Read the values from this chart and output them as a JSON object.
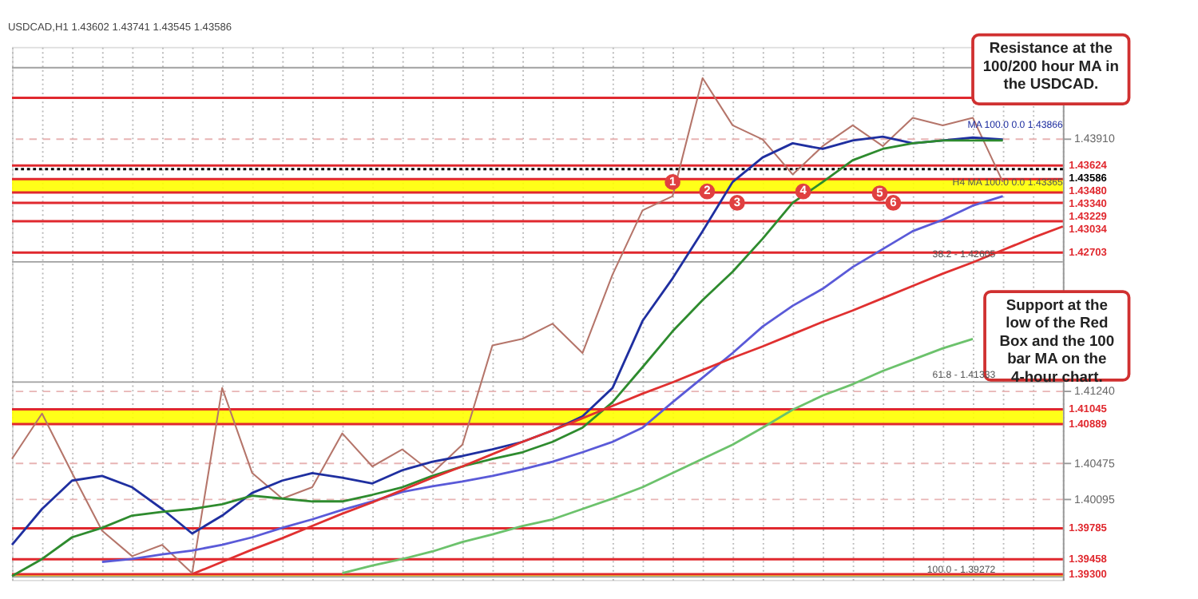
{
  "chart_data": {
    "type": "line",
    "title": "USDCAD,H1 1.43602 1.43741 1.43545 1.43586",
    "categories": [
      null,
      null,
      null,
      null,
      null,
      null,
      null,
      null,
      null,
      null,
      null,
      null,
      null,
      null,
      null,
      null,
      null,
      null,
      null,
      null,
      null,
      null,
      null,
      null,
      null,
      null,
      null,
      null,
      null,
      null,
      null,
      null,
      null,
      null,
      null,
      null
    ],
    "series": [
      {
        "color": "#b5756a",
        "values": [
          1.4052,
          1.41,
          1.4037,
          1.3976,
          1.3949,
          1.3961,
          1.3931,
          1.4127,
          1.4037,
          1.401,
          1.4022,
          1.4079,
          1.4044,
          1.4062,
          1.4037,
          1.4067,
          1.4172,
          1.4179,
          1.4195,
          1.4164,
          1.4247,
          1.4315,
          1.433,
          1.4455,
          1.4405,
          1.439,
          1.4353,
          1.4383,
          1.4405,
          1.4383,
          1.4413,
          1.4405,
          1.4413,
          1.4345,
          null,
          null
        ]
      },
      {
        "color": "#1f2fa0",
        "values": [
          1.3961,
          1.3999,
          1.4029,
          1.4034,
          1.4022,
          1.3999,
          1.3973,
          1.3992,
          1.4016,
          1.4029,
          1.4037,
          1.4032,
          1.4026,
          1.404,
          1.4049,
          1.4055,
          1.4062,
          1.407,
          1.4082,
          1.4097,
          1.4127,
          1.4198,
          1.4243,
          1.4293,
          1.4345,
          1.4371,
          1.4386,
          1.438,
          1.4389,
          1.4393,
          1.4386,
          1.4389,
          1.4392,
          1.439,
          null,
          null
        ]
      },
      {
        "color": "#2e8b2e",
        "values": [
          1.3928,
          1.3946,
          1.3969,
          1.3979,
          1.3992,
          1.3996,
          1.3999,
          1.4004,
          1.4013,
          1.401,
          1.4007,
          1.4007,
          1.4014,
          1.4022,
          1.4034,
          1.4044,
          1.4052,
          1.4059,
          1.407,
          1.4085,
          1.4112,
          1.4149,
          1.4187,
          1.422,
          1.425,
          1.4285,
          1.4323,
          1.4345,
          1.4368,
          1.438,
          1.4386,
          1.4389,
          1.4389,
          1.4389,
          null,
          null
        ]
      },
      {
        "color": "#5a5ad8",
        "values": [
          null,
          null,
          null,
          1.3943,
          1.3946,
          1.3951,
          1.3955,
          1.3961,
          1.3969,
          1.3979,
          1.3988,
          1.3998,
          1.4007,
          1.4017,
          1.4023,
          1.4028,
          1.4034,
          1.4041,
          1.4049,
          1.4059,
          1.407,
          1.4085,
          1.4112,
          1.4138,
          1.4164,
          1.4192,
          1.4214,
          1.4232,
          1.4255,
          1.4274,
          1.4293,
          1.4305,
          1.432,
          1.433,
          null,
          null
        ]
      },
      {
        "color": "#6cc26c",
        "values": [
          null,
          null,
          null,
          null,
          null,
          null,
          null,
          null,
          null,
          null,
          null,
          1.3931,
          1.3939,
          1.3946,
          1.3954,
          1.3964,
          1.3972,
          1.3981,
          1.3988,
          1.3999,
          1.401,
          1.4022,
          1.4037,
          1.4052,
          1.4067,
          1.4085,
          1.4104,
          1.4119,
          1.4131,
          1.4145,
          1.4157,
          1.4169,
          1.4179,
          null,
          null,
          null
        ]
      },
      {
        "color": "#e03030",
        "values": [
          null,
          null,
          null,
          null,
          null,
          null,
          1.393,
          1.3943,
          1.3956,
          1.3968,
          1.3981,
          1.3994,
          1.4006,
          1.4019,
          1.4032,
          1.4044,
          1.4057,
          1.407,
          1.4082,
          1.4095,
          1.4108,
          1.4121,
          1.4133,
          1.4146,
          1.4159,
          1.4171,
          1.4184,
          1.4197,
          1.4209,
          1.4222,
          1.4235,
          1.4248,
          1.426,
          1.4273,
          1.4286,
          1.4298
        ]
      }
    ],
    "ylim": [
      1.3924,
      1.4488
    ],
    "yticks": [
      1.40095,
      1.40475,
      {
        "value": 1.4124,
        "label": "1.41240"
      },
      {
        "value": 1.4391,
        "label": "1.43910"
      }
    ],
    "tick_labels": "y",
    "grid": true,
    "bands": [
      {
        "axis": "y",
        "from": 1.40889,
        "to": 1.41045,
        "color": "#ffff00"
      },
      {
        "axis": "y",
        "from": 1.4334,
        "to": 1.4348,
        "color": "#ffff00"
      },
      {
        "axis": "y",
        "from": 1.39272,
        "to": 1.393,
        "color": "#ffff00"
      }
    ],
    "ref_lines": [
      {
        "axis": "y",
        "value": 1.4466,
        "color": "#a0a0a0"
      },
      {
        "axis": "y",
        "value": 1.4434,
        "color": "#e0282e"
      },
      {
        "axis": "y",
        "value": 1.43624,
        "label": "1.43624",
        "color": "#e0282e"
      },
      {
        "axis": "y",
        "value": 1.43586,
        "label": "1.43586",
        "color": "#000000",
        "line_style": "dotted"
      },
      {
        "axis": "y",
        "value": 1.4348,
        "label": "1.43480",
        "color": "#e0282e"
      },
      {
        "axis": "y",
        "value": 1.4334,
        "label": "1.43340",
        "color": "#e0282e"
      },
      {
        "axis": "y",
        "value": 1.43229,
        "label": "1.43229",
        "color": "#e0282e"
      },
      {
        "axis": "y",
        "value": 1.43034,
        "label": "1.43034",
        "color": "#e0282e"
      },
      {
        "axis": "y",
        "value": 1.42703,
        "label": "1.42703",
        "color": "#e0282e"
      },
      {
        "axis": "y",
        "value": 1.42605,
        "color": "#a0a0a0"
      },
      {
        "axis": "y",
        "value": 1.41333,
        "color": "#a0a0a0"
      },
      {
        "axis": "y",
        "value": 1.41045,
        "label": "1.41045",
        "color": "#e0282e"
      },
      {
        "axis": "y",
        "value": 1.40889,
        "label": "1.40889",
        "color": "#e0282e"
      },
      {
        "axis": "y",
        "value": 1.39785,
        "label": "1.39785",
        "color": "#e0282e"
      },
      {
        "axis": "y",
        "value": 1.39458,
        "label": "1.39458",
        "color": "#e0282e"
      },
      {
        "axis": "y",
        "value": 1.393,
        "label": "1.39300",
        "color": "#e0282e"
      },
      {
        "axis": "y",
        "value": 1.39272,
        "color": "#a0a0a0"
      }
    ],
    "annotations": [
      "Resistance at the 100/200 hour MA in the USDCAD.",
      "Support at the low of the Red Box and the 100 bar MA on the 4-hour chart.",
      {
        "text": "1",
        "y": 1.4345
      },
      {
        "text": "2",
        "y": 1.4335
      },
      {
        "text": "3",
        "y": 1.4323
      },
      {
        "text": "4",
        "y": 1.4335
      },
      {
        "text": "5",
        "y": 1.4333
      },
      {
        "text": "6",
        "y": 1.4323
      },
      {
        "text": "38.2 - 1.42605",
        "y": 1.42605
      },
      {
        "text": "61.8 - 1.41333",
        "y": 1.41333
      },
      {
        "text": "100.0 - 1.39272",
        "y": 1.39272
      },
      "MA 100.0 0.0 1.43866",
      {
        "text": "H4 MA 100.0 0.0 1.43365",
        "y": 1.43365
      }
    ]
  }
}
